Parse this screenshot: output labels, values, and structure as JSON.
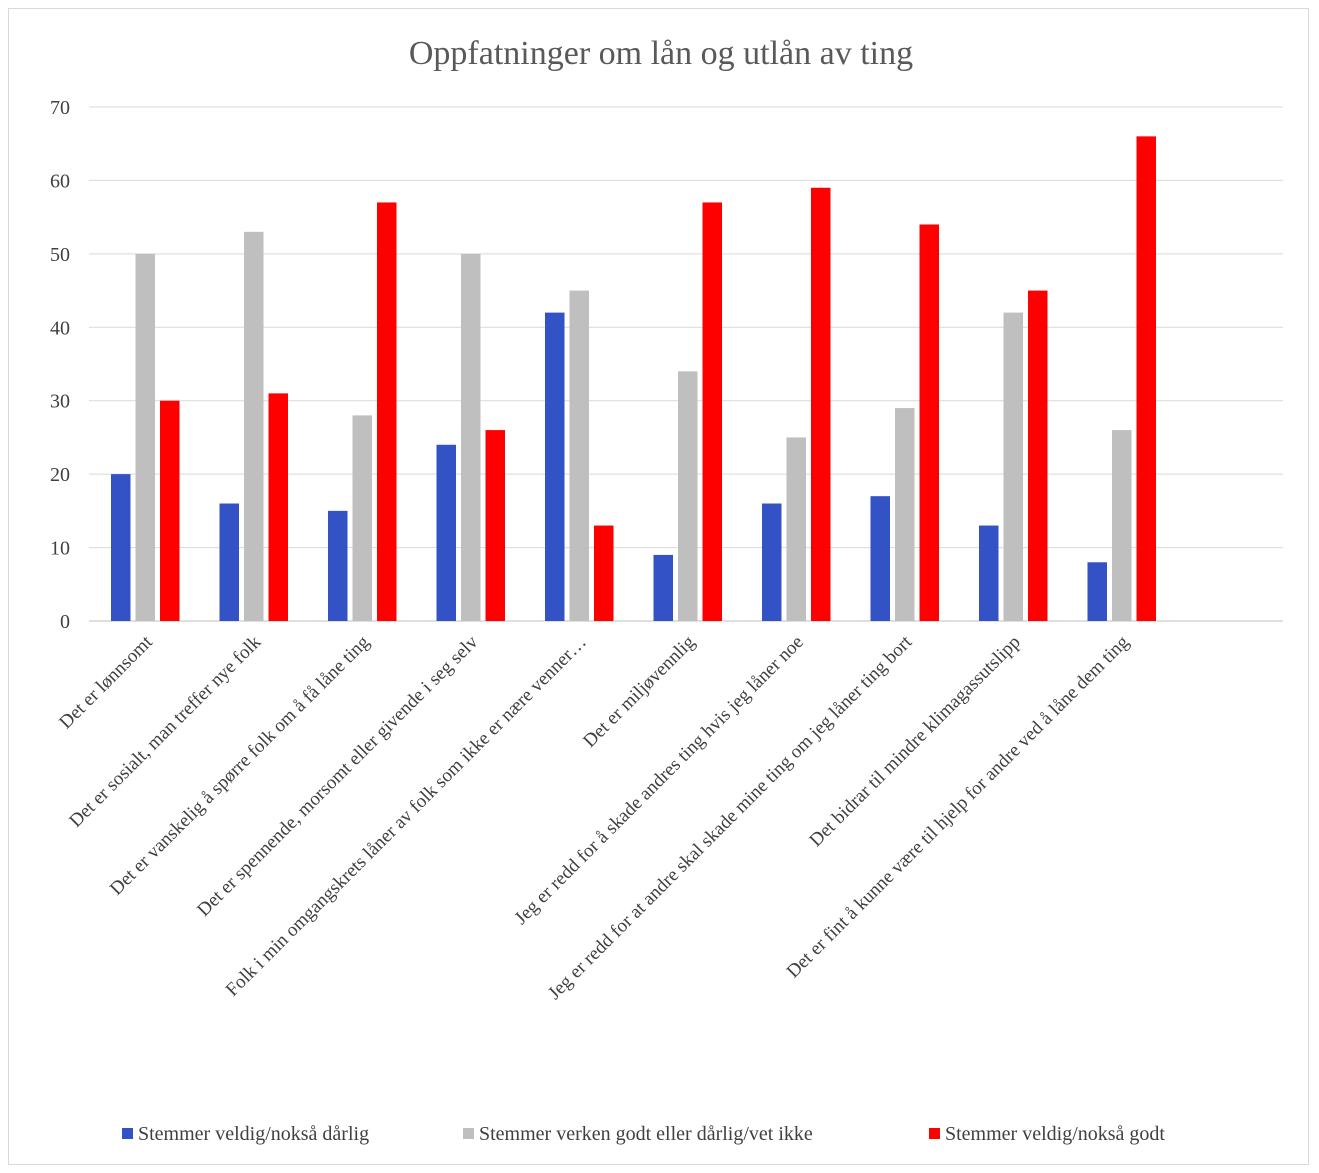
{
  "chart_data": {
    "type": "bar",
    "title": "Oppfatninger om lån og utlån av ting",
    "xlabel": "",
    "ylabel": "",
    "ylim": [
      0,
      70
    ],
    "yticks": [
      0,
      10,
      20,
      30,
      40,
      50,
      60,
      70
    ],
    "grid": true,
    "legend_position": "bottom",
    "categories": [
      "Det er lønnsomt",
      "Det er sosialt, man treffer nye folk",
      "Det er vanskelig å spørre folk om å få låne ting",
      "Det er spennende, morsomt eller givende i seg selv",
      "Folk i min omgangskrets låner av folk som ikke er nære venner…",
      "Det er miljøvennlig",
      "Jeg er redd for å skade andres ting hvis jeg låner noe",
      "Jeg er redd for at andre skal skade mine ting om jeg låner ting bort",
      "Det bidrar til mindre klimagassutslipp",
      "Det er fint å kunne være til hjelp for andre ved å låne dem ting"
    ],
    "series": [
      {
        "name": "Stemmer veldig/nokså dårlig",
        "color": "#3352c6",
        "values": [
          20,
          16,
          15,
          24,
          42,
          9,
          16,
          17,
          13,
          8
        ]
      },
      {
        "name": "Stemmer verken godt eller dårlig/vet ikke",
        "color": "#bfbfbf",
        "values": [
          50,
          53,
          28,
          50,
          45,
          34,
          25,
          29,
          42,
          26
        ]
      },
      {
        "name": "Stemmer veldig/nokså godt",
        "color": "#ff0000",
        "values": [
          30,
          31,
          57,
          26,
          13,
          57,
          59,
          54,
          45,
          66
        ]
      }
    ]
  }
}
